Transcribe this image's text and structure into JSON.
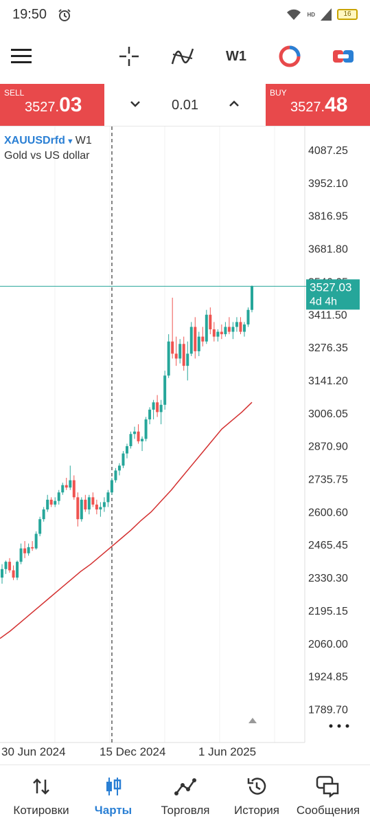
{
  "status": {
    "time": "19:50",
    "hd": "HD",
    "battery": "16"
  },
  "toolbar": {
    "menu_icon": "hamburger-icon",
    "crosshair_icon": "crosshair-icon",
    "indicators_icon": "indicators-icon",
    "timeframe": "W1",
    "colors": {
      "accent": "#2a7fd4",
      "sell": "#e8494b"
    }
  },
  "trade": {
    "sell_label": "SELL",
    "sell_price_prefix": "3527.",
    "sell_price_big": "03",
    "buy_label": "BUY",
    "buy_price_prefix": "3527.",
    "buy_price_big": "48",
    "lot": "0.01"
  },
  "chart": {
    "symbol": "XAUUSDrfd",
    "timeframe": "W1",
    "description": "Gold vs US dollar",
    "current_price_label": "3527.03",
    "countdown": "4d 4h",
    "y_ticks": [
      "4087.25",
      "3952.10",
      "3816.95",
      "3681.80",
      "3546.65",
      "3411.50",
      "3276.35",
      "3141.20",
      "3006.05",
      "2870.90",
      "2735.75",
      "2600.60",
      "2465.45",
      "2330.30",
      "2195.15",
      "2060.00",
      "1924.85",
      "1789.70"
    ],
    "x_labels": [
      "30 Jun 2024",
      "15 Dec 2024",
      "1 Jun 2025"
    ],
    "colors": {
      "bull": "#26a69a",
      "bear": "#ef5350",
      "ma": "#d32f2f",
      "price_line": "#26a69a"
    }
  },
  "chart_data": {
    "type": "candlestick",
    "ylim": [
      1720,
      4130
    ],
    "current_price": 3527.03,
    "candles": [
      {
        "o": 2330,
        "h": 2385,
        "l": 2305,
        "c": 2365
      },
      {
        "o": 2365,
        "h": 2400,
        "l": 2345,
        "c": 2395
      },
      {
        "o": 2395,
        "h": 2410,
        "l": 2350,
        "c": 2360
      },
      {
        "o": 2360,
        "h": 2380,
        "l": 2320,
        "c": 2330
      },
      {
        "o": 2330,
        "h": 2400,
        "l": 2320,
        "c": 2395
      },
      {
        "o": 2395,
        "h": 2470,
        "l": 2385,
        "c": 2450
      },
      {
        "o": 2450,
        "h": 2480,
        "l": 2410,
        "c": 2430
      },
      {
        "o": 2430,
        "h": 2470,
        "l": 2420,
        "c": 2455
      },
      {
        "o": 2455,
        "h": 2480,
        "l": 2440,
        "c": 2450
      },
      {
        "o": 2450,
        "h": 2520,
        "l": 2445,
        "c": 2510
      },
      {
        "o": 2510,
        "h": 2580,
        "l": 2500,
        "c": 2570
      },
      {
        "o": 2570,
        "h": 2620,
        "l": 2560,
        "c": 2610
      },
      {
        "o": 2610,
        "h": 2670,
        "l": 2600,
        "c": 2650
      },
      {
        "o": 2650,
        "h": 2660,
        "l": 2620,
        "c": 2630
      },
      {
        "o": 2630,
        "h": 2660,
        "l": 2620,
        "c": 2645
      },
      {
        "o": 2645,
        "h": 2690,
        "l": 2630,
        "c": 2680
      },
      {
        "o": 2680,
        "h": 2720,
        "l": 2670,
        "c": 2710
      },
      {
        "o": 2710,
        "h": 2740,
        "l": 2690,
        "c": 2700
      },
      {
        "o": 2700,
        "h": 2790,
        "l": 2690,
        "c": 2730
      },
      {
        "o": 2730,
        "h": 2750,
        "l": 2650,
        "c": 2660
      },
      {
        "o": 2660,
        "h": 2680,
        "l": 2540,
        "c": 2570
      },
      {
        "o": 2570,
        "h": 2660,
        "l": 2560,
        "c": 2650
      },
      {
        "o": 2650,
        "h": 2670,
        "l": 2600,
        "c": 2610
      },
      {
        "o": 2610,
        "h": 2670,
        "l": 2590,
        "c": 2660
      },
      {
        "o": 2660,
        "h": 2680,
        "l": 2620,
        "c": 2630
      },
      {
        "o": 2630,
        "h": 2650,
        "l": 2590,
        "c": 2610
      },
      {
        "o": 2610,
        "h": 2640,
        "l": 2580,
        "c": 2620
      },
      {
        "o": 2620,
        "h": 2660,
        "l": 2600,
        "c": 2640
      },
      {
        "o": 2640,
        "h": 2690,
        "l": 2620,
        "c": 2680
      },
      {
        "o": 2680,
        "h": 2740,
        "l": 2670,
        "c": 2730
      },
      {
        "o": 2730,
        "h": 2780,
        "l": 2720,
        "c": 2770
      },
      {
        "o": 2770,
        "h": 2800,
        "l": 2750,
        "c": 2790
      },
      {
        "o": 2790,
        "h": 2850,
        "l": 2780,
        "c": 2840
      },
      {
        "o": 2840,
        "h": 2880,
        "l": 2820,
        "c": 2870
      },
      {
        "o": 2870,
        "h": 2930,
        "l": 2860,
        "c": 2920
      },
      {
        "o": 2920,
        "h": 2950,
        "l": 2900,
        "c": 2930
      },
      {
        "o": 2930,
        "h": 2960,
        "l": 2880,
        "c": 2890
      },
      {
        "o": 2890,
        "h": 2910,
        "l": 2850,
        "c": 2900
      },
      {
        "o": 2900,
        "h": 2990,
        "l": 2890,
        "c": 2980
      },
      {
        "o": 2980,
        "h": 3030,
        "l": 2960,
        "c": 3020
      },
      {
        "o": 3020,
        "h": 3060,
        "l": 2980,
        "c": 3050
      },
      {
        "o": 3050,
        "h": 3080,
        "l": 2990,
        "c": 3010
      },
      {
        "o": 3010,
        "h": 3060,
        "l": 2960,
        "c": 3040
      },
      {
        "o": 3040,
        "h": 3180,
        "l": 3020,
        "c": 3160
      },
      {
        "o": 3160,
        "h": 3330,
        "l": 3150,
        "c": 3300
      },
      {
        "o": 3300,
        "h": 3480,
        "l": 3230,
        "c": 3250
      },
      {
        "o": 3250,
        "h": 3320,
        "l": 3200,
        "c": 3230
      },
      {
        "o": 3230,
        "h": 3310,
        "l": 3210,
        "c": 3290
      },
      {
        "o": 3290,
        "h": 3320,
        "l": 3180,
        "c": 3200
      },
      {
        "o": 3200,
        "h": 3300,
        "l": 3140,
        "c": 3250
      },
      {
        "o": 3250,
        "h": 3380,
        "l": 3240,
        "c": 3360
      },
      {
        "o": 3360,
        "h": 3400,
        "l": 3230,
        "c": 3260
      },
      {
        "o": 3260,
        "h": 3340,
        "l": 3240,
        "c": 3320
      },
      {
        "o": 3320,
        "h": 3360,
        "l": 3280,
        "c": 3300
      },
      {
        "o": 3300,
        "h": 3430,
        "l": 3290,
        "c": 3410
      },
      {
        "o": 3410,
        "h": 3440,
        "l": 3330,
        "c": 3350
      },
      {
        "o": 3350,
        "h": 3380,
        "l": 3300,
        "c": 3320
      },
      {
        "o": 3320,
        "h": 3350,
        "l": 3300,
        "c": 3340
      },
      {
        "o": 3340,
        "h": 3370,
        "l": 3310,
        "c": 3330
      },
      {
        "o": 3330,
        "h": 3380,
        "l": 3320,
        "c": 3360
      },
      {
        "o": 3360,
        "h": 3400,
        "l": 3330,
        "c": 3340
      },
      {
        "o": 3340,
        "h": 3380,
        "l": 3310,
        "c": 3360
      },
      {
        "o": 3360,
        "h": 3400,
        "l": 3340,
        "c": 3380
      },
      {
        "o": 3380,
        "h": 3400,
        "l": 3330,
        "c": 3340
      },
      {
        "o": 3340,
        "h": 3380,
        "l": 3320,
        "c": 3370
      },
      {
        "o": 3370,
        "h": 3440,
        "l": 3360,
        "c": 3430
      },
      {
        "o": 3430,
        "h": 3530,
        "l": 3420,
        "c": 3527.03
      }
    ],
    "moving_average": [
      2080,
      2110,
      2145,
      2180,
      2215,
      2250,
      2285,
      2320,
      2355,
      2385,
      2420,
      2455,
      2490,
      2525,
      2565,
      2600,
      2645,
      2690,
      2740,
      2790,
      2840,
      2890,
      2940,
      2975,
      3010,
      3050
    ]
  },
  "nav": {
    "items": [
      {
        "label": "Котировки",
        "icon": "quotes-icon"
      },
      {
        "label": "Чарты",
        "icon": "charts-icon"
      },
      {
        "label": "Торговля",
        "icon": "trade-icon"
      },
      {
        "label": "История",
        "icon": "history-icon"
      },
      {
        "label": "Сообщения",
        "icon": "messages-icon"
      }
    ]
  }
}
